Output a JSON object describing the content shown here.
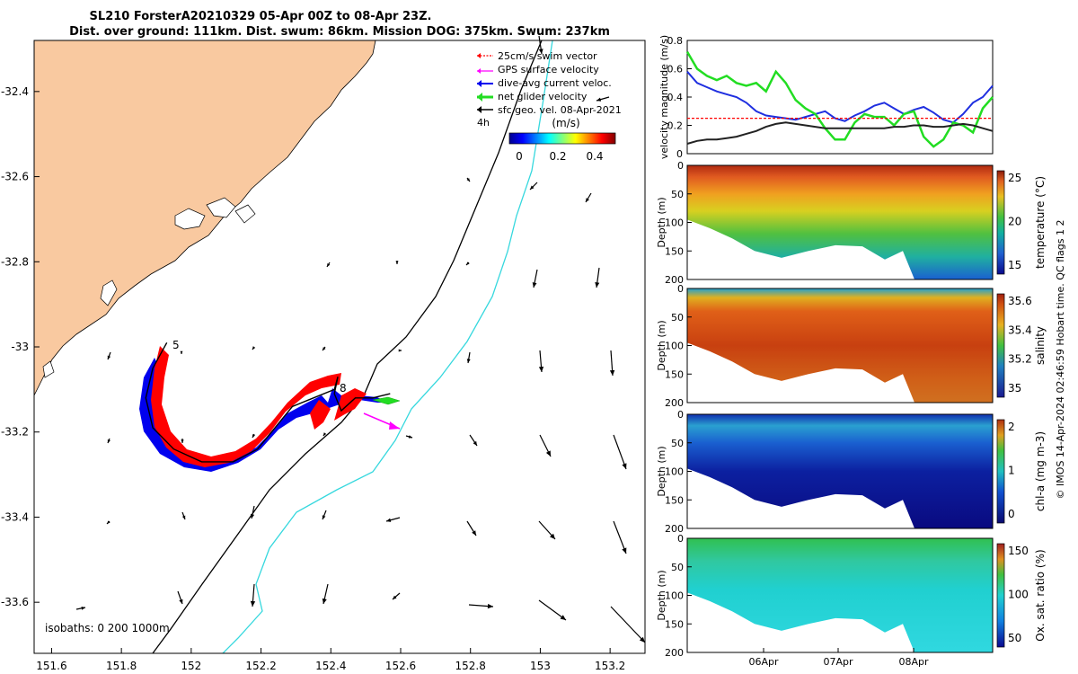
{
  "title": {
    "line1": "SL210 ForsterA20210329 05-Apr 00Z to 08-Apr 23Z.",
    "line2": "Dist. over ground: 111km. Dist. swum: 86km. Mission DOG: 375km. Swum: 237km"
  },
  "copyright": "© IMOS 14-Apr-2024 02:46:59 Hobart time. QC flags 1  2",
  "colors": {
    "land": "#f9c9a0",
    "track_blue": "#0000ee",
    "track_red": "#ff0000",
    "ocean_line": "#36d8de",
    "gps_vec": "#ff00ff",
    "net_glider": "#22dd22"
  },
  "chart_data": [
    {
      "id": "map",
      "type": "scatter",
      "xlim": [
        151.55,
        153.3
      ],
      "ylim": [
        -33.72,
        -32.28
      ],
      "xticks": [
        "151.6",
        "151.8",
        "152",
        "152.2",
        "152.4",
        "152.6",
        "152.8",
        "153",
        "153.2"
      ],
      "yticks": [
        "-32.4",
        "-32.6",
        "-32.8",
        "-33",
        "-33.2",
        "-33.4",
        "-33.6"
      ],
      "legend": {
        "items": [
          "25cm/s swim vector",
          "GPS surface velocity",
          "dive-avg current veloc.",
          "net glider velocity",
          "sfc geo. vel. 08-Apr-2021"
        ],
        "time_label": "4h",
        "colorbar_label": "(m/s)",
        "colorbar_ticks": [
          "0",
          "0.2",
          "0.4"
        ]
      },
      "isobaths_label": "isobaths: 0   200   1000m",
      "day_markers": [
        "5",
        "8"
      ],
      "glider_track": [
        [
          151.93,
          -32.99
        ],
        [
          151.89,
          -33.05
        ],
        [
          151.87,
          -33.12
        ],
        [
          151.89,
          -33.19
        ],
        [
          151.95,
          -33.24
        ],
        [
          152.03,
          -33.27
        ],
        [
          152.12,
          -33.27
        ],
        [
          152.19,
          -33.24
        ],
        [
          152.24,
          -33.19
        ],
        [
          152.29,
          -33.14
        ],
        [
          152.35,
          -33.12
        ],
        [
          152.41,
          -33.1
        ],
        [
          152.42,
          -33.07
        ],
        [
          152.41,
          -33.11
        ],
        [
          152.43,
          -33.15
        ],
        [
          152.47,
          -33.12
        ],
        [
          152.52,
          -33.12
        ],
        [
          152.57,
          -33.11
        ]
      ]
    },
    {
      "id": "velocity",
      "type": "line",
      "ylabel": "velocity magnitude (m/s)",
      "ylim": [
        0,
        0.8
      ],
      "yticks": [
        "0",
        "0.2",
        "0.4",
        "0.6",
        "0.8"
      ],
      "series": [
        {
          "name": "dive-avg current veloc.",
          "color": "#1f2fe0",
          "values": [
            0.58,
            0.5,
            0.47,
            0.44,
            0.42,
            0.4,
            0.36,
            0.3,
            0.27,
            0.26,
            0.25,
            0.24,
            0.26,
            0.28,
            0.3,
            0.25,
            0.23,
            0.27,
            0.3,
            0.34,
            0.36,
            0.32,
            0.28,
            0.31,
            0.33,
            0.29,
            0.24,
            0.22,
            0.28,
            0.36,
            0.4,
            0.48
          ]
        },
        {
          "name": "net glider velocity",
          "color": "#22dd22",
          "values": [
            0.72,
            0.6,
            0.55,
            0.52,
            0.55,
            0.5,
            0.48,
            0.5,
            0.44,
            0.58,
            0.5,
            0.38,
            0.32,
            0.28,
            0.18,
            0.1,
            0.1,
            0.22,
            0.28,
            0.26,
            0.26,
            0.2,
            0.28,
            0.3,
            0.12,
            0.05,
            0.1,
            0.22,
            0.2,
            0.15,
            0.32,
            0.4
          ]
        },
        {
          "name": "net glider velocity (dark)",
          "color": "#222222",
          "values": [
            0.07,
            0.09,
            0.1,
            0.1,
            0.11,
            0.12,
            0.14,
            0.16,
            0.19,
            0.21,
            0.22,
            0.21,
            0.2,
            0.19,
            0.18,
            0.18,
            0.18,
            0.18,
            0.18,
            0.18,
            0.18,
            0.19,
            0.19,
            0.2,
            0.2,
            0.19,
            0.19,
            0.2,
            0.21,
            0.2,
            0.18,
            0.16
          ]
        },
        {
          "name": "25cm/s swim vector",
          "color": "#ff0000",
          "values": [
            0.25,
            0.25,
            0.25,
            0.25,
            0.25,
            0.25,
            0.25,
            0.25,
            0.25,
            0.25,
            0.25,
            0.25,
            0.25,
            0.25,
            0.25,
            0.25,
            0.25,
            0.25,
            0.25,
            0.25,
            0.25,
            0.25,
            0.25,
            0.25,
            0.25,
            0.25,
            0.25,
            0.25,
            0.25,
            0.25,
            0.25,
            0.25
          ]
        }
      ]
    },
    {
      "id": "temperature",
      "type": "heatmap",
      "ylabel": "Depth (m)",
      "yticks": [
        "0",
        "50",
        "100",
        "150",
        "200"
      ],
      "colorbar_label": "temperature (°C)",
      "colorbar_ticks": [
        "25",
        "20",
        "15"
      ]
    },
    {
      "id": "salinity",
      "type": "heatmap",
      "ylabel": "Depth (m)",
      "yticks": [
        "0",
        "50",
        "100",
        "150",
        "200"
      ],
      "colorbar_label": "salinity",
      "colorbar_ticks": [
        "35.6",
        "35.4",
        "35.2",
        "35"
      ]
    },
    {
      "id": "chla",
      "type": "heatmap",
      "ylabel": "Depth (m)",
      "yticks": [
        "0",
        "50",
        "100",
        "150",
        "200"
      ],
      "colorbar_label": "chl-a (mg m-3)",
      "colorbar_ticks": [
        "2",
        "1",
        "0"
      ]
    },
    {
      "id": "oxygen",
      "type": "heatmap",
      "ylabel": "Depth (m)",
      "yticks": [
        "0",
        "50",
        "100",
        "150",
        "200"
      ],
      "colorbar_label": "Ox. sat. ratio (%)",
      "colorbar_ticks": [
        "150",
        "100",
        "50"
      ],
      "xticks": [
        "06Apr",
        "07Apr",
        "08Apr"
      ]
    }
  ]
}
